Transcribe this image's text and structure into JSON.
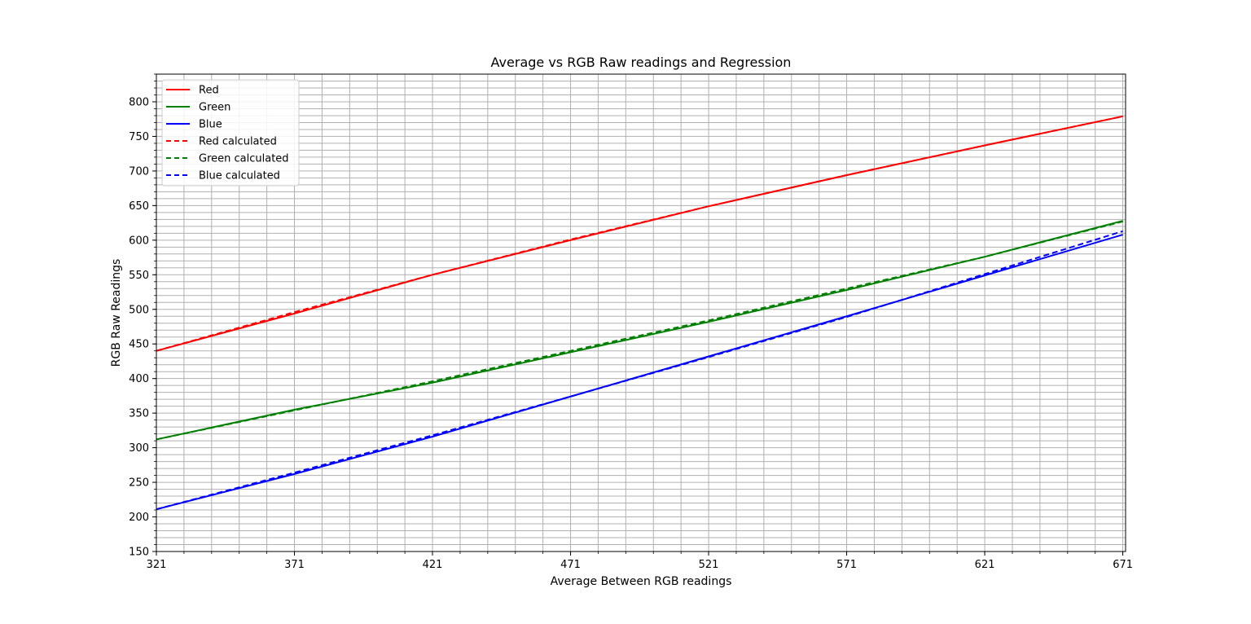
{
  "chart_data": {
    "type": "line",
    "title": "Average vs RGB Raw readings and Regression",
    "xlabel": "Average Between RGB readings",
    "ylabel": "RGB Raw Readings",
    "xlim": [
      321,
      672
    ],
    "ylim": [
      150,
      840
    ],
    "x_ticks": [
      321,
      371,
      421,
      471,
      521,
      571,
      621,
      671
    ],
    "y_ticks": [
      150,
      200,
      250,
      300,
      350,
      400,
      450,
      500,
      550,
      600,
      650,
      700,
      750,
      800
    ],
    "grid": true,
    "minor_grid": true,
    "legend_position": "top-left",
    "colors": {
      "red": "#ff0000",
      "green": "#008000",
      "blue": "#0000ff"
    },
    "series": [
      {
        "name": "Red",
        "color": "#ff0000",
        "style": "solid",
        "x": [
          321,
          371,
          421,
          471,
          521,
          571,
          621,
          671
        ],
        "y": [
          440,
          494,
          550,
          600,
          649,
          694,
          737,
          779
        ]
      },
      {
        "name": "Green",
        "color": "#008000",
        "style": "solid",
        "x": [
          321,
          371,
          421,
          471,
          521,
          571,
          621,
          671
        ],
        "y": [
          312,
          355,
          394,
          438,
          482,
          528,
          576,
          628
        ]
      },
      {
        "name": "Blue",
        "color": "#0000ff",
        "style": "solid",
        "x": [
          321,
          371,
          421,
          471,
          521,
          571,
          621,
          671
        ],
        "y": [
          211,
          262,
          316,
          374,
          432,
          490,
          549,
          608
        ]
      },
      {
        "name": "Red calculated",
        "color": "#ff0000",
        "style": "dashed",
        "x": [
          321,
          371,
          421,
          471,
          521,
          571,
          621,
          671
        ],
        "y": [
          440,
          496,
          550,
          601,
          649,
          694,
          737,
          779
        ]
      },
      {
        "name": "Green calculated",
        "color": "#008000",
        "style": "dashed",
        "x": [
          321,
          371,
          421,
          471,
          521,
          571,
          621,
          671
        ],
        "y": [
          312,
          354,
          396,
          440,
          484,
          530,
          576,
          627
        ]
      },
      {
        "name": "Blue calculated",
        "color": "#0000ff",
        "style": "dashed",
        "x": [
          321,
          371,
          421,
          471,
          521,
          571,
          621,
          671
        ],
        "y": [
          211,
          264,
          318,
          374,
          431,
          489,
          551,
          613
        ]
      }
    ]
  }
}
